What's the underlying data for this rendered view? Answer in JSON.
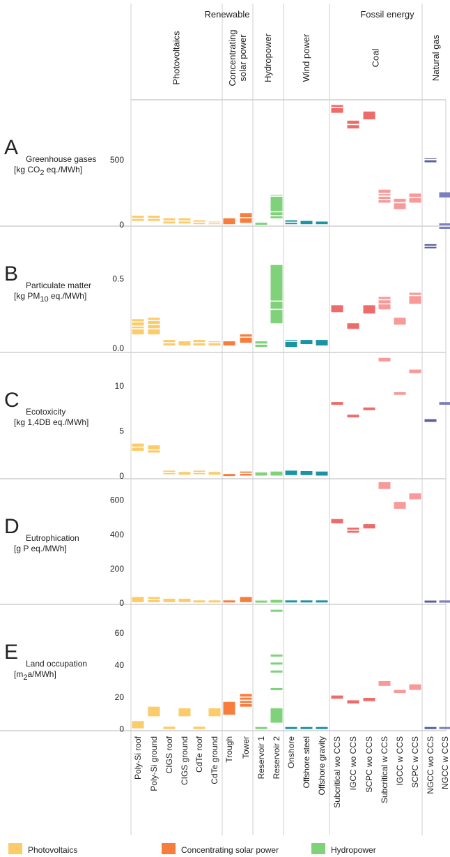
{
  "chart_data": {
    "type": "range-bar",
    "groups": {
      "renewable": "Renewable",
      "fossil": "Fossil energy"
    },
    "technologies": [
      {
        "id": "pv",
        "label": "Photovoltaics"
      },
      {
        "id": "csp",
        "label": "Concentrating solar power"
      },
      {
        "id": "hydro",
        "label": "Hydropower"
      },
      {
        "id": "wind",
        "label": "Wind power"
      },
      {
        "id": "coal",
        "label": "Coal"
      },
      {
        "id": "gas",
        "label": "Natural gas"
      }
    ],
    "categories": [
      "Poly-Si roof",
      "Poly-Si ground",
      "CIGS roof",
      "CIGS ground",
      "CdTe roof",
      "CdTe ground",
      "Trough",
      "Tower",
      "Reservoir 1",
      "Reservoir 2",
      "Onshore",
      "Offshore steel",
      "Offshore gravity",
      "Subcritical wo CCS",
      "IGCC wo CCS",
      "SCPC wo CCS",
      "Subcritical w CCS",
      "IGCC w CCS",
      "SCPC w CCS",
      "NGCC wo CCS",
      "NGCC w CCS"
    ],
    "category_technology": [
      "pv",
      "pv",
      "pv",
      "pv",
      "pv",
      "pv",
      "csp",
      "csp",
      "hydro",
      "hydro",
      "wind",
      "wind",
      "wind",
      "coal",
      "coal",
      "coal",
      "coal",
      "coal",
      "coal",
      "gas",
      "gas"
    ],
    "colors": {
      "pv": "#fccb6a",
      "csp": "#f77d3c",
      "hydro": "#7fd27a",
      "wind": "#1b93a6",
      "coal": "#ee6b6b",
      "gas": "#5b5f9e",
      "coal_ccs": "#f69a9a",
      "gas_ccs": "#7c80bd",
      "line": "#ffffff"
    },
    "legend": [
      {
        "label": "Photovoltaics",
        "color": "#fccb6a"
      },
      {
        "label": "Concentrating solar power",
        "color": "#f77d3c"
      },
      {
        "label": "Hydropower",
        "color": "#7fd27a"
      }
    ],
    "panels": [
      {
        "letter": "A",
        "name": "Greenhouse gases",
        "unit_prefix": "[kg CO",
        "unit_sub": "2",
        "unit_suffix": " eq./MWh]",
        "ylim": [
          -10,
          960
        ],
        "ticks": [
          0,
          500
        ],
        "tick_labels": [
          "0",
          "500"
        ],
        "ranges": [
          [
            30,
            70
          ],
          [
            30,
            70
          ],
          [
            10,
            50
          ],
          [
            10,
            50
          ],
          [
            5,
            35
          ],
          [
            5,
            25
          ],
          [
            5,
            50
          ],
          [
            15,
            90
          ],
          [
            0,
            15
          ],
          [
            50,
            230
          ],
          [
            5,
            35
          ],
          [
            5,
            30
          ],
          [
            5,
            25
          ],
          [
            860,
            920
          ],
          [
            740,
            800
          ],
          [
            810,
            870
          ],
          [
            170,
            270
          ],
          [
            120,
            200
          ],
          [
            170,
            240
          ],
          [
            480,
            510
          ],
          [
            210,
            250
          ]
        ],
        "lines": [
          [
            50
          ],
          [
            50
          ],
          [
            30
          ],
          [
            30
          ],
          [
            20
          ],
          [
            15
          ],
          [],
          [
            55
          ],
          [],
          [
            70,
            100,
            220
          ],
          [
            20
          ],
          [],
          [],
          [
            900
          ],
          [
            770
          ],
          [],
          [
            195,
            220,
            240
          ],
          [
            170
          ],
          [
            210
          ],
          [
            500
          ],
          []
        ]
      },
      {
        "letter": "B",
        "name": "Particulate matter",
        "unit_prefix": "[kg PM",
        "unit_sub": "10",
        "unit_suffix": " eq./MWh]",
        "ylim": [
          -0.03,
          0.88
        ],
        "ticks": [
          0.0,
          0.5
        ],
        "tick_labels": [
          "0.0",
          "0.5"
        ],
        "ranges": [
          [
            0.1,
            0.21
          ],
          [
            0.1,
            0.22
          ],
          [
            0.02,
            0.06
          ],
          [
            0.02,
            0.05
          ],
          [
            0.02,
            0.06
          ],
          [
            0.02,
            0.05
          ],
          [
            0.02,
            0.05
          ],
          [
            0.04,
            0.1
          ],
          [
            0.01,
            0.05
          ],
          [
            0.18,
            0.6
          ],
          [
            0.01,
            0.06
          ],
          [
            0.03,
            0.06
          ],
          [
            0.02,
            0.06
          ],
          [
            0.26,
            0.31
          ],
          [
            0.14,
            0.18
          ],
          [
            0.25,
            0.31
          ],
          [
            0.28,
            0.37
          ],
          [
            0.17,
            0.22
          ],
          [
            0.32,
            0.4
          ],
          [
            0.72,
            0.75
          ],
          [
            0.86,
            0.9
          ]
        ],
        "lines": [
          [
            0.14,
            0.16,
            0.19
          ],
          [
            0.14,
            0.17,
            0.2
          ],
          [
            0.04
          ],
          [],
          [
            0.04
          ],
          [
            0.04
          ],
          [],
          [
            0.08
          ],
          [
            0.03
          ],
          [
            0.28,
            0.34
          ],
          [
            0.05
          ],
          [],
          [],
          [],
          [],
          [],
          [
            0.32,
            0.35
          ],
          [],
          [
            0.38
          ],
          [
            0.735
          ],
          [
            0.88
          ]
        ]
      },
      {
        "letter": "C",
        "name": "Ecotoxicity",
        "unit_prefix": "[kg 1,4DB eq./MWh]",
        "unit_sub": "",
        "unit_suffix": "",
        "ylim": [
          -0.3,
          13.7
        ],
        "ticks": [
          0,
          5,
          10
        ],
        "tick_labels": [
          "0",
          "5",
          "10"
        ],
        "ranges": [
          [
            2.8,
            3.6
          ],
          [
            2.6,
            3.4
          ],
          [
            0.2,
            0.6
          ],
          [
            0.15,
            0.45
          ],
          [
            0.2,
            0.6
          ],
          [
            0.15,
            0.45
          ],
          [
            0.0,
            0.2
          ],
          [
            0.05,
            0.5
          ],
          [
            0.05,
            0.4
          ],
          [
            0.05,
            0.5
          ],
          [
            0.1,
            0.6
          ],
          [
            0.1,
            0.55
          ],
          [
            0.05,
            0.5
          ],
          [
            7.9,
            8.2
          ],
          [
            6.5,
            6.8
          ],
          [
            7.3,
            7.6
          ],
          [
            12.7,
            13.1
          ],
          [
            9.0,
            9.3
          ],
          [
            11.4,
            11.8
          ],
          [
            6.0,
            6.3
          ],
          [
            7.9,
            8.2
          ]
        ],
        "lines": [
          [
            3.2
          ],
          [
            2.9
          ],
          [
            0.4
          ],
          [],
          [
            0.4
          ],
          [],
          [],
          [
            0.3
          ],
          [],
          [],
          [],
          [],
          [],
          [],
          [],
          [],
          [],
          [],
          [],
          [],
          []
        ]
      },
      {
        "letter": "D",
        "name": "Eutrophication",
        "unit_prefix": "[g P eq./MWh]",
        "unit_sub": "",
        "unit_suffix": "",
        "ylim": [
          -8,
          725
        ],
        "ticks": [
          0,
          200,
          400,
          600
        ],
        "tick_labels": [
          "0",
          "200",
          "400",
          "600"
        ],
        "ranges": [
          [
            5,
            35
          ],
          [
            5,
            35
          ],
          [
            5,
            25
          ],
          [
            5,
            25
          ],
          [
            3,
            15
          ],
          [
            3,
            15
          ],
          [
            3,
            12
          ],
          [
            5,
            35
          ],
          [
            2,
            10
          ],
          [
            2,
            18
          ],
          [
            3,
            12
          ],
          [
            3,
            10
          ],
          [
            3,
            10
          ],
          [
            465,
            490
          ],
          [
            410,
            440
          ],
          [
            435,
            460
          ],
          [
            665,
            705
          ],
          [
            550,
            590
          ],
          [
            605,
            640
          ],
          [
            2,
            8
          ],
          [
            2,
            15
          ]
        ],
        "lines": [
          [],
          [
            20
          ],
          [],
          [],
          [],
          [],
          [],
          [],
          [],
          [],
          [],
          [],
          [],
          [],
          [
            425
          ],
          [],
          [],
          [],
          [],
          [],
          []
        ]
      },
      {
        "letter": "E",
        "name": "Land occupation",
        "unit_prefix": "[m",
        "unit_sub": "2",
        "unit_suffix": "a/MWh]",
        "ylim": [
          -1,
          78
        ],
        "ticks": [
          0,
          20,
          40,
          60
        ],
        "tick_labels": [
          "0",
          "20",
          "40",
          "60"
        ],
        "ranges": [
          [
            0.5,
            5
          ],
          [
            8,
            14
          ],
          [
            0,
            1.5
          ],
          [
            8,
            13
          ],
          [
            0,
            1.5
          ],
          [
            8,
            13
          ],
          [
            9,
            17
          ],
          [
            14,
            22
          ],
          [
            0,
            0.5
          ],
          [
            4,
            13
          ],
          [
            0,
            0.5
          ],
          [
            0,
            0.5
          ],
          [
            0,
            0.5
          ],
          [
            19,
            21
          ],
          [
            16,
            18
          ],
          [
            17.5,
            19.5
          ],
          [
            27,
            30
          ],
          [
            22.5,
            24.5
          ],
          [
            24.5,
            28
          ],
          [
            0,
            0.5
          ],
          [
            0,
            0.5
          ]
        ],
        "lines": [
          [],
          [],
          [],
          [],
          [],
          [],
          [],
          [
            16,
            18,
            20
          ],
          [],
          [],
          [],
          [],
          [],
          [],
          [],
          [],
          [],
          [],
          [],
          [],
          []
        ],
        "extra_marks": [
          {
            "index": 9,
            "values": [
              25,
              36,
              41,
              46,
              74
            ]
          }
        ]
      }
    ]
  }
}
